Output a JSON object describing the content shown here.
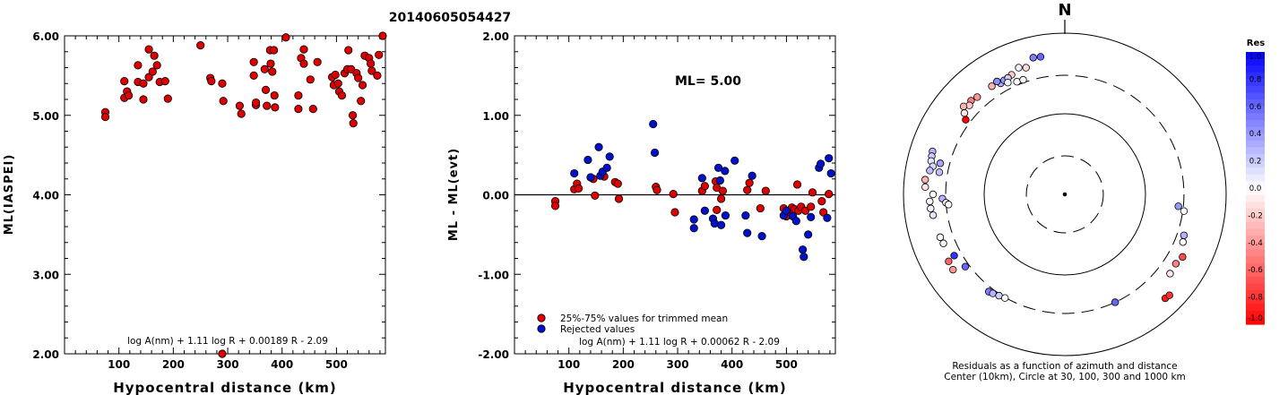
{
  "figure_title": "20140605054427",
  "chart_data": [
    {
      "type": "scatter",
      "id": "ml-vs-distance",
      "title": "",
      "xlabel": "Hypocentral distance (km)",
      "ylabel": "ML(IASPEI)",
      "xlim": [
        0,
        590
      ],
      "ylim": [
        2.0,
        6.0
      ],
      "xticks": [
        100,
        200,
        300,
        400,
        500
      ],
      "xtick_labels": [
        "100",
        "200",
        "300",
        "400",
        "500"
      ],
      "yticks": [
        2.0,
        3.0,
        4.0,
        5.0,
        6.0
      ],
      "ytick_labels": [
        "2.00",
        "3.00",
        "4.00",
        "5.00",
        "6.00"
      ],
      "annotation": "log A(nm) + 1.11 log R + 0.00189 R - 2.09",
      "series": [
        {
          "color": "#dd0000",
          "points": [
            [
              75,
              5.04
            ],
            [
              75,
              4.98
            ],
            [
              110,
              5.43
            ],
            [
              110,
              5.22
            ],
            [
              115,
              5.3
            ],
            [
              118,
              5.25
            ],
            [
              135,
              5.63
            ],
            [
              135,
              5.42
            ],
            [
              145,
              5.4
            ],
            [
              145,
              5.2
            ],
            [
              155,
              5.83
            ],
            [
              155,
              5.48
            ],
            [
              162,
              5.55
            ],
            [
              165,
              5.75
            ],
            [
              170,
              5.63
            ],
            [
              175,
              5.42
            ],
            [
              185,
              5.43
            ],
            [
              190,
              5.21
            ],
            [
              250,
              5.88
            ],
            [
              268,
              5.47
            ],
            [
              270,
              5.43
            ],
            [
              290,
              5.4
            ],
            [
              292,
              5.18
            ],
            [
              290,
              2.0
            ],
            [
              322,
              5.12
            ],
            [
              325,
              5.02
            ],
            [
              348,
              5.67
            ],
            [
              348,
              5.5
            ],
            [
              352,
              5.13
            ],
            [
              352,
              5.16
            ],
            [
              368,
              5.58
            ],
            [
              370,
              5.32
            ],
            [
              372,
              5.12
            ],
            [
              378,
              5.82
            ],
            [
              379,
              5.65
            ],
            [
              382,
              5.55
            ],
            [
              385,
              5.82
            ],
            [
              386,
              5.25
            ],
            [
              387,
              5.1
            ],
            [
              407,
              5.98
            ],
            [
              430,
              5.25
            ],
            [
              430,
              5.08
            ],
            [
              435,
              5.72
            ],
            [
              440,
              5.83
            ],
            [
              440,
              5.65
            ],
            [
              452,
              5.45
            ],
            [
              457,
              5.08
            ],
            [
              465,
              5.67
            ],
            [
              492,
              5.48
            ],
            [
              495,
              5.38
            ],
            [
              498,
              5.51
            ],
            [
              503,
              5.4
            ],
            [
              505,
              5.3
            ],
            [
              510,
              5.25
            ],
            [
              515,
              5.53
            ],
            [
              520,
              5.58
            ],
            [
              522,
              5.82
            ],
            [
              527,
              5.58
            ],
            [
              530,
              5.0
            ],
            [
              531,
              4.9
            ],
            [
              537,
              5.53
            ],
            [
              540,
              5.47
            ],
            [
              545,
              5.18
            ],
            [
              548,
              5.38
            ],
            [
              552,
              5.75
            ],
            [
              560,
              5.72
            ],
            [
              563,
              5.65
            ],
            [
              565,
              5.56
            ],
            [
              575,
              5.5
            ],
            [
              578,
              5.76
            ],
            [
              585,
              6.0
            ]
          ]
        }
      ]
    },
    {
      "type": "scatter",
      "id": "residual-vs-distance",
      "title": "",
      "xlabel": "Hypocentral distance (km)",
      "ylabel": "ML - ML(evt)",
      "xlim": [
        0,
        590
      ],
      "ylim": [
        -2.0,
        2.0
      ],
      "xticks": [
        100,
        200,
        300,
        400,
        500
      ],
      "xtick_labels": [
        "100",
        "200",
        "300",
        "400",
        "500"
      ],
      "yticks": [
        -2.0,
        -1.0,
        0.0,
        1.0,
        2.0
      ],
      "ytick_labels": [
        "-2.00",
        "-1.00",
        "0.00",
        "1.00",
        "2.00"
      ],
      "ml_label": "ML= 5.00",
      "annotation": "log A(nm) + 1.11 log R + 0.00062 R - 2.09",
      "legend": {
        "placement": "bottom-left",
        "entries": [
          {
            "label": "25%-75% values for trimmed mean",
            "color": "#dd0000"
          },
          {
            "label": "Rejected values",
            "color": "#0011cc"
          }
        ]
      },
      "series": [
        {
          "name": "25%-75% values for trimmed mean",
          "color": "#dd0000",
          "points": [
            [
              75,
              -0.08
            ],
            [
              75,
              -0.14
            ],
            [
              110,
              0.07
            ],
            [
              115,
              0.14
            ],
            [
              118,
              0.08
            ],
            [
              145,
              0.2
            ],
            [
              148,
              -0.01
            ],
            [
              165,
              0.23
            ],
            [
              185,
              0.16
            ],
            [
              190,
              0.14
            ],
            [
              192,
              -0.05
            ],
            [
              260,
              0.1
            ],
            [
              262,
              0.06
            ],
            [
              292,
              0.01
            ],
            [
              295,
              -0.22
            ],
            [
              345,
              0.05
            ],
            [
              350,
              0.11
            ],
            [
              370,
              0.17
            ],
            [
              372,
              0.09
            ],
            [
              372,
              -0.19
            ],
            [
              380,
              -0.05
            ],
            [
              383,
              0.05
            ],
            [
              428,
              0.06
            ],
            [
              432,
              0.15
            ],
            [
              452,
              -0.17
            ],
            [
              462,
              0.05
            ],
            [
              495,
              -0.17
            ],
            [
              500,
              -0.27
            ],
            [
              505,
              -0.21
            ],
            [
              510,
              -0.16
            ],
            [
              515,
              -0.18
            ],
            [
              520,
              0.13
            ],
            [
              522,
              -0.2
            ],
            [
              527,
              -0.15
            ],
            [
              535,
              -0.2
            ],
            [
              545,
              -0.15
            ],
            [
              548,
              0.03
            ],
            [
              565,
              -0.08
            ],
            [
              568,
              -0.22
            ],
            [
              578,
              0.01
            ]
          ]
        },
        {
          "name": "Rejected values",
          "color": "#0011cc",
          "points": [
            [
              110,
              0.27
            ],
            [
              135,
              0.44
            ],
            [
              140,
              0.22
            ],
            [
              155,
              0.6
            ],
            [
              158,
              0.24
            ],
            [
              162,
              0.29
            ],
            [
              170,
              0.34
            ],
            [
              175,
              0.48
            ],
            [
              255,
              0.89
            ],
            [
              258,
              0.53
            ],
            [
              330,
              -0.31
            ],
            [
              330,
              -0.42
            ],
            [
              345,
              0.21
            ],
            [
              350,
              -0.2
            ],
            [
              365,
              -0.3
            ],
            [
              368,
              -0.36
            ],
            [
              375,
              0.34
            ],
            [
              378,
              0.18
            ],
            [
              380,
              -0.38
            ],
            [
              387,
              0.3
            ],
            [
              388,
              -0.26
            ],
            [
              405,
              0.43
            ],
            [
              425,
              -0.26
            ],
            [
              428,
              -0.48
            ],
            [
              437,
              0.24
            ],
            [
              455,
              -0.52
            ],
            [
              495,
              -0.26
            ],
            [
              500,
              -0.2
            ],
            [
              512,
              -0.27
            ],
            [
              518,
              -0.33
            ],
            [
              530,
              -0.69
            ],
            [
              532,
              -0.78
            ],
            [
              540,
              -0.5
            ],
            [
              545,
              -0.28
            ],
            [
              560,
              0.34
            ],
            [
              563,
              0.39
            ],
            [
              575,
              -0.29
            ],
            [
              578,
              0.46
            ],
            [
              582,
              0.27
            ]
          ]
        }
      ]
    },
    {
      "type": "scatter",
      "id": "azimuth-distance-residuals",
      "projection": "polar",
      "title": "",
      "north_label": "N",
      "caption_lines": [
        "Residuals as a function of azimuth and distance",
        "Center (10km), Circle at 30, 100, 300 and 1000 km"
      ],
      "colorbar": {
        "title": "Res",
        "tick_values": [
          1.0,
          0.8,
          0.6,
          0.4,
          0.2,
          0.0,
          -0.2,
          -0.4,
          -0.6,
          -0.8,
          -1.0
        ],
        "tick_labels": [
          "1.0",
          "0.8",
          "0.6",
          "0.4",
          "0.2",
          "0.0",
          "-0.2",
          "-0.4",
          "-0.6",
          "-0.8",
          "-1.0"
        ],
        "max_color": "#0000ff",
        "zero_color": "#ffffff",
        "min_color": "#ff0000"
      },
      "circles": [
        {
          "distance_km": 10,
          "style": "center-dot"
        },
        {
          "distance_km": 30,
          "style": "dashed"
        },
        {
          "distance_km": 100,
          "style": "solid"
        },
        {
          "distance_km": 300,
          "style": "dashed"
        },
        {
          "distance_km": 1000,
          "style": "solid"
        }
      ],
      "stations": [
        {
          "azimuth_deg": 340,
          "distance_km": 470,
          "residual": 0.05
        },
        {
          "azimuth_deg": 343,
          "distance_km": 440,
          "residual": -0.15
        },
        {
          "azimuth_deg": 347,
          "distance_km": 550,
          "residual": 0.5
        },
        {
          "azimuth_deg": 350,
          "distance_km": 540,
          "residual": 0.6
        },
        {
          "azimuth_deg": 336,
          "distance_km": 420,
          "residual": -0.2
        },
        {
          "azimuth_deg": 330,
          "distance_km": 390,
          "residual": 0.3
        },
        {
          "azimuth_deg": 332,
          "distance_km": 400,
          "residual": 0.4
        },
        {
          "azimuth_deg": 334,
          "distance_km": 405,
          "residual": 0.2
        },
        {
          "azimuth_deg": 329,
          "distance_km": 430,
          "residual": 0.45
        },
        {
          "azimuth_deg": 333,
          "distance_km": 360,
          "residual": 0.05
        },
        {
          "azimuth_deg": 337,
          "distance_km": 330,
          "residual": 0.0
        },
        {
          "azimuth_deg": 340,
          "distance_km": 325,
          "residual": -0.05
        },
        {
          "azimuth_deg": 326,
          "distance_km": 415,
          "residual": -0.3
        },
        {
          "azimuth_deg": 318,
          "distance_km": 420,
          "residual": -0.4
        },
        {
          "azimuth_deg": 315,
          "distance_km": 440,
          "residual": -0.5
        },
        {
          "azimuth_deg": 313,
          "distance_km": 415,
          "residual": -0.2
        },
        {
          "azimuth_deg": 311,
          "distance_km": 460,
          "residual": -0.3
        },
        {
          "azimuth_deg": 309,
          "distance_km": 400,
          "residual": -0.1
        },
        {
          "azimuth_deg": 307,
          "distance_km": 345,
          "residual": -1.0
        },
        {
          "azimuth_deg": 288,
          "distance_km": 530,
          "residual": 0.3
        },
        {
          "azimuth_deg": 286,
          "distance_km": 520,
          "residual": 0.2
        },
        {
          "azimuth_deg": 284,
          "distance_km": 510,
          "residual": 0.1
        },
        {
          "azimuth_deg": 282,
          "distance_km": 470,
          "residual": 0.15
        },
        {
          "azimuth_deg": 280,
          "distance_km": 500,
          "residual": 0.25
        },
        {
          "azimuth_deg": 276,
          "distance_km": 550,
          "residual": -0.3
        },
        {
          "azimuth_deg": 273,
          "distance_km": 540,
          "residual": -0.1
        },
        {
          "azimuth_deg": 270,
          "distance_km": 430,
          "residual": 0.0
        },
        {
          "azimuth_deg": 267,
          "distance_km": 475,
          "residual": 0.0
        },
        {
          "azimuth_deg": 264,
          "distance_km": 470,
          "residual": 0.05
        },
        {
          "azimuth_deg": 261,
          "distance_km": 450,
          "residual": 0.1
        },
        {
          "azimuth_deg": 284,
          "distance_km": 390,
          "residual": 0.35
        },
        {
          "azimuth_deg": 280,
          "distance_km": 380,
          "residual": 0.25
        },
        {
          "azimuth_deg": 268,
          "distance_km": 330,
          "residual": 0.3
        },
        {
          "azimuth_deg": 266,
          "distance_km": 300,
          "residual": -0.1
        },
        {
          "azimuth_deg": 265,
          "distance_km": 280,
          "residual": 0.0
        },
        {
          "azimuth_deg": 251,
          "distance_km": 430,
          "residual": 0.0
        },
        {
          "azimuth_deg": 248,
          "distance_km": 420,
          "residual": -0.05
        },
        {
          "azimuth_deg": 240,
          "distance_km": 460,
          "residual": -0.6
        },
        {
          "azimuth_deg": 236,
          "distance_km": 470,
          "residual": -0.4
        },
        {
          "azimuth_deg": 241,
          "distance_km": 370,
          "residual": 0.8
        },
        {
          "azimuth_deg": 234,
          "distance_km": 335,
          "residual": 0.6
        },
        {
          "azimuth_deg": 218,
          "distance_km": 340,
          "residual": 0.5
        },
        {
          "azimuth_deg": 216,
          "distance_km": 330,
          "residual": 0.3
        },
        {
          "azimuth_deg": 213,
          "distance_km": 315,
          "residual": 0.2
        },
        {
          "azimuth_deg": 210,
          "distance_km": 305,
          "residual": 0.0
        },
        {
          "azimuth_deg": 155,
          "distance_km": 300,
          "residual": 0.6
        },
        {
          "azimuth_deg": 127,
          "distance_km": 430,
          "residual": -0.1
        },
        {
          "azimuth_deg": 122,
          "distance_km": 420,
          "residual": -0.5
        },
        {
          "azimuth_deg": 118,
          "distance_km": 450,
          "residual": -0.7
        },
        {
          "azimuth_deg": 136,
          "distance_km": 620,
          "residual": -0.9
        },
        {
          "azimuth_deg": 134,
          "distance_km": 635,
          "residual": -0.8
        },
        {
          "azimuth_deg": 98,
          "distance_km": 310,
          "residual": 0.0
        },
        {
          "azimuth_deg": 96,
          "distance_km": 260,
          "residual": 0.4
        },
        {
          "azimuth_deg": 112,
          "distance_km": 380,
          "residual": 0.0
        },
        {
          "azimuth_deg": 109,
          "distance_km": 365,
          "residual": 0.3
        }
      ]
    }
  ]
}
